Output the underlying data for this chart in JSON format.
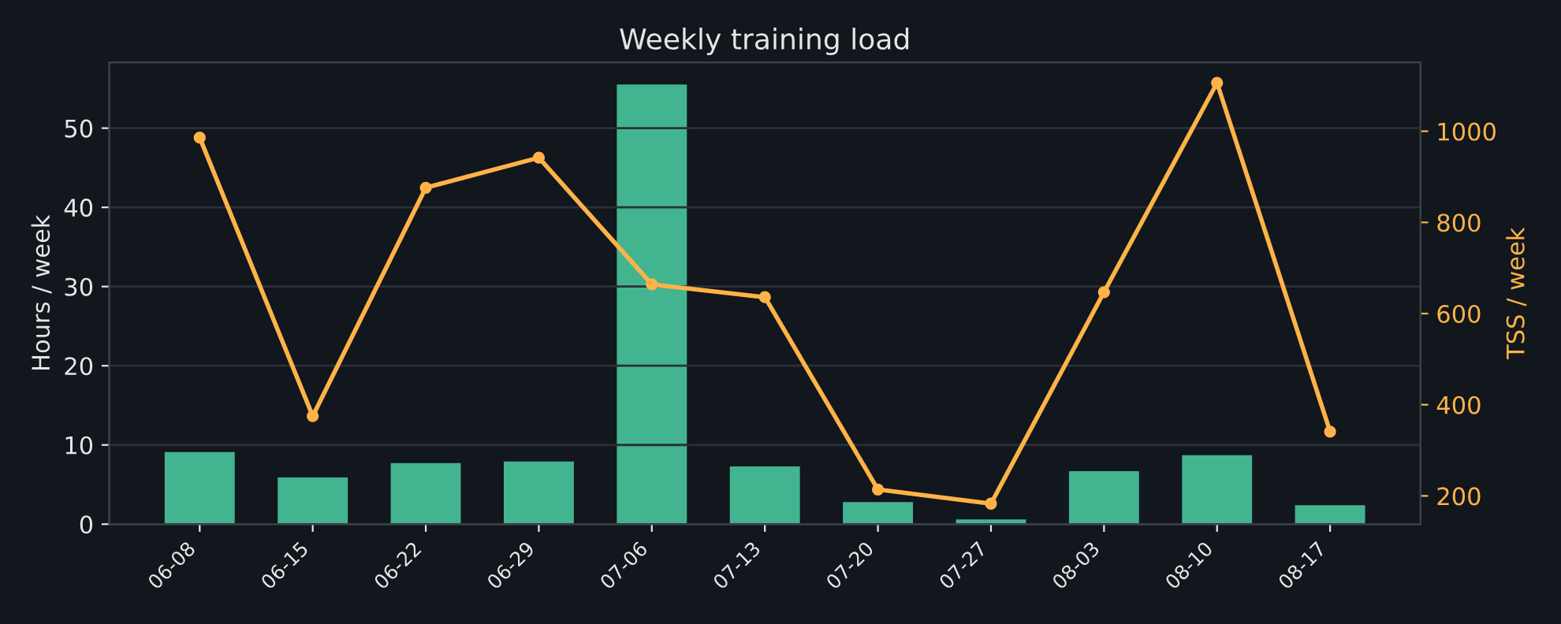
{
  "chart_data": {
    "type": "bar",
    "title": "Weekly training load",
    "ylabel": "Hours / week",
    "y2label": "TSS / week",
    "categories": [
      "06-08",
      "06-15",
      "06-22",
      "06-29",
      "07-06",
      "07-13",
      "07-20",
      "07-27",
      "08-03",
      "08-10",
      "08-17"
    ],
    "series": [
      {
        "color": "#43b490",
        "values": [
          9.1,
          5.9,
          7.7,
          7.9,
          55.5,
          7.3,
          2.8,
          0.6,
          6.7,
          8.7,
          2.4
        ]
      },
      {
        "type": "line",
        "axis": "y2",
        "color": "#ffb347",
        "marker": "circle",
        "values": [
          986,
          375,
          876,
          942,
          664,
          636,
          214,
          183,
          647,
          1106,
          341
        ]
      }
    ],
    "ylim": [
      0,
      58.3
    ],
    "yticks": [
      0,
      10,
      20,
      30,
      40,
      50
    ],
    "y2lim": [
      138,
      1151
    ],
    "y2ticks": [
      200,
      400,
      600,
      800,
      1000
    ],
    "grid": "y",
    "legend": false
  }
}
